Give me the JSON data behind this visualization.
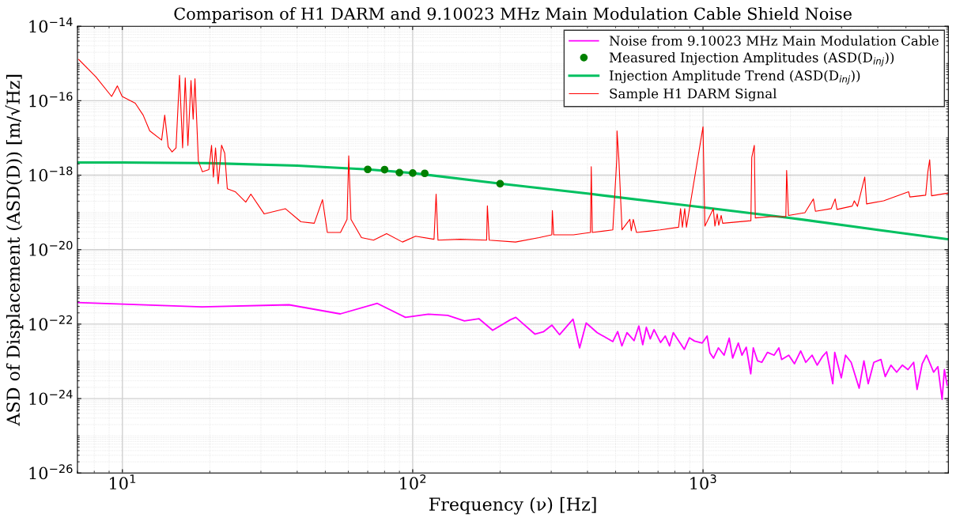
{
  "chart_data": {
    "type": "line",
    "title": "Comparison of H1 DARM and 9.10023 MHz Main Modulation Cable Shield Noise",
    "xlabel": "Frequency (ν) [Hz]",
    "ylabel": "ASD of Displacement (ASD(D)) [m/√Hz]",
    "log": "xy",
    "grid": true,
    "legend": "top right",
    "xlim": [
      7,
      7000
    ],
    "xticks": [
      {
        "value": 10,
        "label": "10$^{1}$"
      },
      {
        "value": 100,
        "label": "10$^{2}$"
      },
      {
        "value": 1000,
        "label": "10$^{3}$"
      }
    ],
    "ylim": [
      1e-26,
      1e-14
    ],
    "yticks": [
      {
        "value": 1e-26,
        "label": "10$^{−26}$"
      },
      {
        "value": 1e-24,
        "label": "10$^{−24}$"
      },
      {
        "value": 1e-22,
        "label": "10$^{−22}$"
      },
      {
        "value": 1e-20,
        "label": "10$^{−20}$"
      },
      {
        "value": 1e-18,
        "label": "10$^{−18}$"
      },
      {
        "value": 1e-16,
        "label": "10$^{−16}$"
      },
      {
        "value": 1e-14,
        "label": "10$^{−14}$"
      }
    ],
    "series": [
      {
        "name": "Noise from 9.10023 MHz Main Modulation Cable",
        "color": "#ff00ff",
        "x": [
          7.0,
          18.8,
          37.5,
          56.3,
          75.5,
          94.4,
          113.2,
          132,
          150.7,
          169,
          188.5,
          217,
          226.5,
          263.5,
          281.8,
          301.5,
          320.4,
          356.7,
          375.8,
          395.9,
          432,
          489,
          508,
          525.6,
          547,
          579,
          601,
          620,
          638,
          658,
          678,
          714,
          741,
          767,
          790,
          826,
          862,
          898,
          935,
          994,
          1033,
          1056,
          1087,
          1130,
          1182,
          1231,
          1265,
          1323,
          1362,
          1409,
          1460,
          1490,
          1541,
          1594,
          1667,
          1757,
          1825,
          1866,
          1974,
          2065,
          2170,
          2260,
          2375,
          2474,
          2576,
          2665,
          2799,
          2843,
          2994,
          3097,
          3238,
          3450,
          3583,
          3707,
          3877,
          4102,
          4243,
          4439,
          4645,
          4858,
          5082,
          5316,
          5462,
          5689,
          5886,
          6087,
          6227,
          6441,
          6661,
          6783,
          6932
        ],
        "values": [
          3.8e-22,
          2.9e-22,
          3.3e-22,
          1.88e-22,
          3.6e-22,
          1.52e-22,
          1.85e-22,
          1.72e-22,
          1.22e-22,
          1.4e-22,
          6.8e-23,
          1.31e-22,
          1.52e-22,
          5.4e-23,
          6.2e-23,
          9.4e-23,
          5.2e-23,
          1.36e-22,
          2.3e-23,
          1.07e-22,
          5.9e-23,
          3.4e-23,
          6.3e-23,
          2.6e-23,
          5.9e-23,
          3.6e-23,
          8.9e-23,
          2.8e-23,
          8.2e-23,
          4e-23,
          7.1e-23,
          3.2e-23,
          4.8e-23,
          2.6e-23,
          5.9e-23,
          3.5e-23,
          2.1e-23,
          4.3e-23,
          3.5e-23,
          3.1e-23,
          4.8e-23,
          1.7e-23,
          1.22e-23,
          2.3e-23,
          1.46e-23,
          4.2e-23,
          1.22e-23,
          3.1e-23,
          1.46e-23,
          2.4e-23,
          4.6e-24,
          2.3e-23,
          1.03e-23,
          9.4e-24,
          1.74e-23,
          1.46e-23,
          2.3e-23,
          1.12e-23,
          1.46e-23,
          8.6e-24,
          1.9e-23,
          9.4e-24,
          1.46e-23,
          7.9e-24,
          1.33e-23,
          1.8e-23,
          2.5e-24,
          1.74e-23,
          3.6e-24,
          1.46e-23,
          9.4e-24,
          1.9e-24,
          1.03e-23,
          2.5e-24,
          9.4e-24,
          1.12e-23,
          3.9e-24,
          7.9e-24,
          5.1e-24,
          7.9e-24,
          6e-24,
          9.4e-24,
          1.76e-24,
          8.6e-24,
          1.46e-23,
          7.9e-24,
          5.1e-24,
          7.2e-24,
          9.5e-25,
          6e-24,
          2.3e-24
        ]
      },
      {
        "name": "Measured Injection Amplitudes (ASD(D$_{inj}$))",
        "type": "scatter",
        "marker": "circle",
        "color": "#008000",
        "x": [
          70,
          80,
          90,
          100,
          110,
          200
        ],
        "values": [
          1.43e-18,
          1.41e-18,
          1.17e-18,
          1.14e-18,
          1.12e-18,
          5.9e-19
        ]
      },
      {
        "name": "Injection Amplitude Trend (ASD(D$_{inj}$))",
        "color": "#00c060",
        "x": [
          7,
          10,
          20,
          40,
          70,
          100,
          200,
          400,
          1000,
          2000,
          4000,
          7000
        ],
        "values": [
          2.2e-18,
          2.2e-18,
          2.1e-18,
          1.8e-18,
          1.43e-18,
          1.14e-18,
          5.9e-19,
          3.2e-19,
          1.36e-19,
          7.1e-20,
          3.4e-20,
          1.9e-20
        ]
      },
      {
        "name": "Sample H1 DARM Signal",
        "color": "#ff0000",
        "x": [
          7.07,
          8.1,
          9.18,
          9.61,
          9.98,
          11.07,
          11.79,
          12.42,
          13.65,
          13.99,
          14.38,
          14.83,
          15.3,
          15.73,
          16.12,
          16.46,
          16.81,
          17.23,
          17.53,
          17.78,
          18.27,
          18.85,
          19.86,
          20.28,
          20.58,
          20.93,
          21.37,
          21.96,
          22.51,
          22.98,
          24.47,
          26.6,
          27.7,
          30.8,
          36.4,
          41.2,
          45.8,
          48.9,
          50.8,
          56.4,
          59.4,
          60.2,
          61.3,
          66.6,
          73.3,
          81.3,
          92.2,
          102.3,
          118.4,
          120.4,
          122.2,
          145.8,
          179.7,
          180.8,
          183.5,
          226,
          272.7,
          301.4,
          302.7,
          305.8,
          357.7,
          409.6,
          412.1,
          415.6,
          489,
          504.7,
          505.5,
          512.9,
          526,
          559.7,
          566,
          575,
          590,
          641,
          712,
          824,
          837,
          849,
          865,
          877,
          1000,
          1015,
          1085,
          1099,
          1119,
          1133,
          1155,
          1169,
          1462,
          1472,
          1502,
          1514,
          1710,
          1929,
          1941,
          1970,
          2244,
          2400,
          2439,
          2764,
          2852,
          2894,
          3266,
          3320,
          3404,
          3607,
          3660,
          4188,
          5107,
          5160,
          5848,
          5950,
          6037,
          6126,
          6985
        ],
        "values": [
          1.28e-15,
          4.4e-16,
          1.3e-16,
          2.5e-16,
          1.3e-16,
          8.6e-17,
          4.1e-17,
          1.55e-17,
          8.8e-18,
          4.1e-17,
          5.8e-18,
          4.2e-18,
          5.4e-18,
          4.8e-16,
          5.4e-18,
          4.1e-16,
          6.3e-18,
          3.5e-16,
          3.2e-17,
          3.9e-16,
          2.4e-18,
          1.24e-18,
          1.41e-18,
          6.3e-18,
          8.9e-19,
          5.4e-18,
          5.9e-19,
          6.4e-18,
          3.9e-18,
          4.3e-19,
          3.6e-19,
          1.89e-19,
          3.1e-19,
          9.1e-20,
          1.26e-19,
          5.6e-20,
          5.1e-20,
          2.2e-19,
          2.9e-20,
          2.9e-20,
          6.5e-20,
          3.3e-18,
          6.5e-20,
          2.1e-20,
          1.8e-20,
          2.7e-20,
          1.6e-20,
          2.3e-20,
          1.9e-20,
          3.1e-19,
          1.8e-20,
          1.9e-20,
          1.8e-20,
          1.5e-19,
          1.8e-20,
          1.6e-20,
          2.1e-20,
          2.5e-20,
          1.12e-19,
          2.5e-20,
          2.5e-20,
          2.9e-20,
          1.7e-18,
          2.9e-20,
          3.4e-20,
          2.8e-18,
          1.55e-17,
          2.8e-18,
          3.4e-20,
          6.5e-20,
          3.2e-20,
          6.5e-20,
          2.9e-20,
          3.1e-20,
          3.4e-20,
          4e-20,
          1.26e-19,
          4e-20,
          1.26e-19,
          4e-20,
          2e-17,
          4.3e-20,
          1.26e-19,
          4.3e-20,
          9.1e-20,
          4.5e-20,
          8.3e-20,
          5.1e-20,
          6e-20,
          3e-18,
          6.3e-18,
          7.1e-20,
          7.7e-20,
          7.7e-20,
          1.34e-18,
          8.3e-20,
          9.8e-20,
          2.3e-19,
          1.07e-19,
          1.26e-19,
          2.3e-19,
          1.2e-19,
          1.48e-19,
          2.05e-19,
          1.45e-19,
          8.9e-19,
          1.69e-19,
          2.05e-19,
          3.6e-19,
          2.6e-19,
          2.9e-19,
          1.24e-18,
          2.6e-18,
          2.8e-19,
          3.3e-19
        ]
      }
    ]
  }
}
